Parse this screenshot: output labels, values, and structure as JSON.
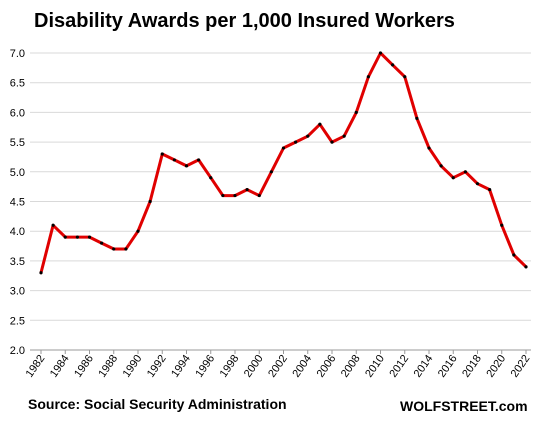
{
  "header": {
    "title": "Disability Awards per 1,000 Insured Workers"
  },
  "footer": {
    "source": "Source: Social Security Administration",
    "brand": "WOLFSTREET.com"
  },
  "colors": {
    "line": "#e00000",
    "marker": "#000000",
    "grid": "#d9d9d9",
    "axis": "#999999"
  },
  "chart_data": {
    "type": "line",
    "title": "Disability Awards per 1,000 Insured Workers",
    "xlabel": "",
    "ylabel": "",
    "x": [
      1982,
      1983,
      1984,
      1985,
      1986,
      1987,
      1988,
      1989,
      1990,
      1991,
      1992,
      1993,
      1994,
      1995,
      1996,
      1997,
      1998,
      1999,
      2000,
      2001,
      2002,
      2003,
      2004,
      2005,
      2006,
      2007,
      2008,
      2009,
      2010,
      2011,
      2012,
      2013,
      2014,
      2015,
      2016,
      2017,
      2018,
      2019,
      2020,
      2021,
      2022
    ],
    "series": [
      {
        "values": [
          3.3,
          4.1,
          3.9,
          3.9,
          3.9,
          3.8,
          3.7,
          3.7,
          4.0,
          4.5,
          5.3,
          5.2,
          5.1,
          5.2,
          4.9,
          4.6,
          4.6,
          4.7,
          4.6,
          5.0,
          5.4,
          5.5,
          5.6,
          5.8,
          5.5,
          5.6,
          6.0,
          6.6,
          7.0,
          6.8,
          6.6,
          5.9,
          5.4,
          5.1,
          4.9,
          5.0,
          4.8,
          4.7,
          4.1,
          3.6,
          3.4
        ]
      }
    ],
    "ylim": [
      2.0,
      7.0
    ],
    "yticks": [
      "2.0",
      "2.5",
      "3.0",
      "3.5",
      "4.0",
      "4.5",
      "5.0",
      "5.5",
      "6.0",
      "6.5",
      "7.0"
    ],
    "xticks": [
      "1982",
      "1984",
      "1986",
      "1988",
      "1990",
      "1992",
      "1994",
      "1996",
      "1998",
      "2000",
      "2002",
      "2004",
      "2006",
      "2008",
      "2010",
      "2012",
      "2014",
      "2016",
      "2018",
      "2020",
      "2022"
    ],
    "grid": true
  }
}
